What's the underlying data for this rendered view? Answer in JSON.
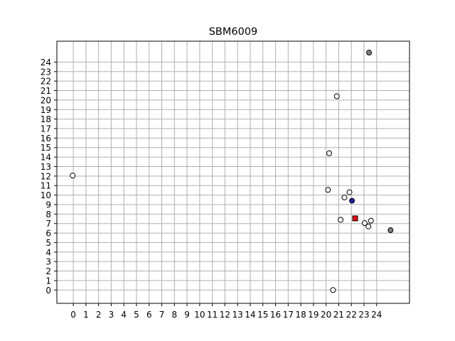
{
  "chart_data": {
    "type": "scatter",
    "title": "SBM6009",
    "xlabel": "",
    "ylabel": "",
    "xlim": [
      -1.3,
      26.6
    ],
    "ylim": [
      -1.4,
      26.2
    ],
    "x_ticks": [
      0,
      1,
      2,
      3,
      4,
      5,
      6,
      7,
      8,
      9,
      10,
      11,
      12,
      13,
      14,
      15,
      16,
      17,
      18,
      19,
      20,
      21,
      22,
      23,
      24
    ],
    "y_ticks": [
      0,
      1,
      2,
      3,
      4,
      5,
      6,
      7,
      8,
      9,
      10,
      11,
      12,
      13,
      14,
      15,
      16,
      17,
      18,
      19,
      20,
      21,
      22,
      23,
      24
    ],
    "grid": true,
    "colors": {
      "plain": "#ffffff",
      "highlight_gray": "#808080",
      "blue": "#1f1fa8",
      "red": "#e01010",
      "edge": "#000000",
      "grid": "#b0b0b0"
    },
    "points": [
      {
        "x": -0.05,
        "y": 12.05,
        "style": "plain"
      },
      {
        "x": 20.15,
        "y": 10.55,
        "style": "plain"
      },
      {
        "x": 20.25,
        "y": 14.4,
        "style": "plain"
      },
      {
        "x": 20.85,
        "y": 20.4,
        "style": "plain"
      },
      {
        "x": 20.55,
        "y": 0.0,
        "style": "plain"
      },
      {
        "x": 21.15,
        "y": 7.4,
        "style": "plain"
      },
      {
        "x": 21.45,
        "y": 9.75,
        "style": "plain"
      },
      {
        "x": 21.85,
        "y": 10.3,
        "style": "plain"
      },
      {
        "x": 22.05,
        "y": 9.4,
        "style": "blue"
      },
      {
        "x": 22.3,
        "y": 7.55,
        "style": "red"
      },
      {
        "x": 23.05,
        "y": 7.05,
        "style": "plain"
      },
      {
        "x": 23.35,
        "y": 6.7,
        "style": "plain"
      },
      {
        "x": 23.55,
        "y": 7.3,
        "style": "plain"
      },
      {
        "x": 23.4,
        "y": 25.0,
        "style": "highlight_gray"
      },
      {
        "x": 25.1,
        "y": 6.3,
        "style": "highlight_gray"
      }
    ]
  }
}
